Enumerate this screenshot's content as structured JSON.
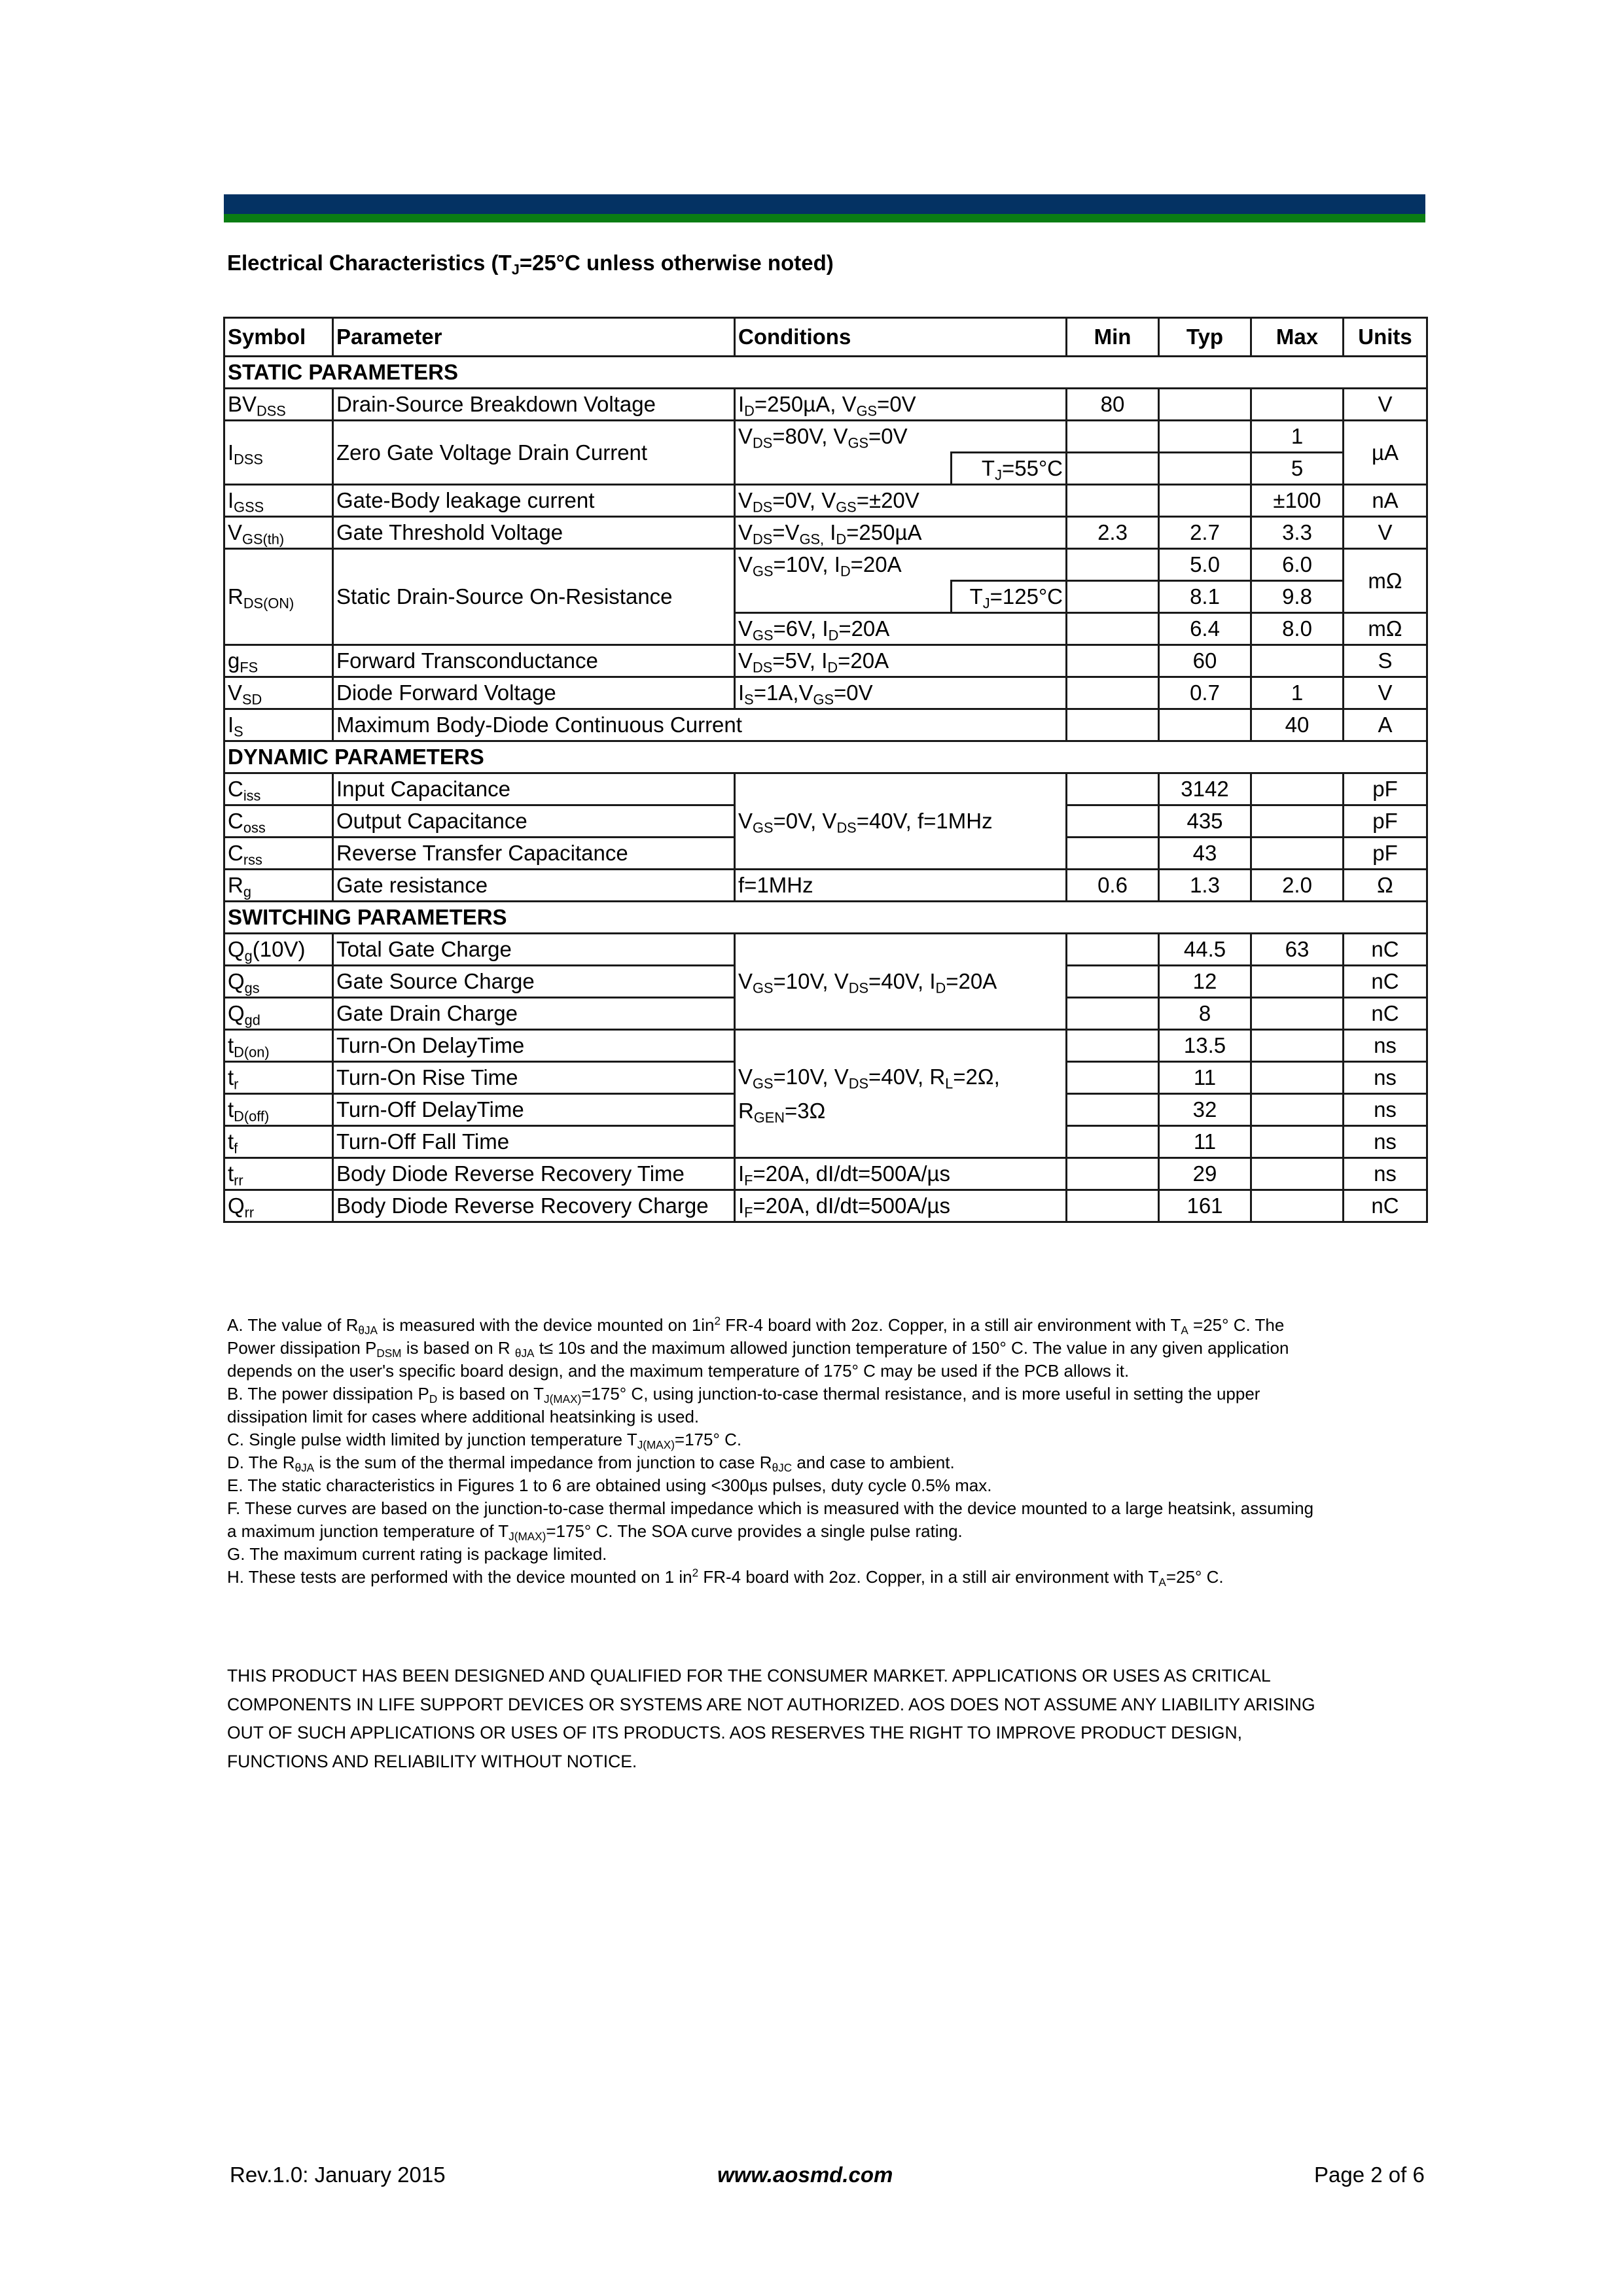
{
  "header_bar_colors": {
    "navy": "#043263",
    "green": "#0a7d13"
  },
  "title": "Electrical Characteristics (T_{J}=25°C unless otherwise noted)",
  "table": {
    "headers": {
      "symbol": "Symbol",
      "parameter": "Parameter",
      "conditions": "Conditions",
      "min": "Min",
      "typ": "Typ",
      "max": "Max",
      "units": "Units"
    },
    "sections": {
      "static": "STATIC PARAMETERS",
      "dynamic": "DYNAMIC PARAMETERS",
      "switching": "SWITCHING PARAMETERS"
    },
    "rows": {
      "bvdss": {
        "symbol": "BV_{DSS}",
        "parameter": "Drain-Source Breakdown Voltage",
        "conditions": "I_{D}=250µA, V_{GS}=0V",
        "min": "80",
        "units": "V"
      },
      "idss": {
        "symbol": "I_{DSS}",
        "parameter": "Zero Gate Voltage Drain Current",
        "conditions": "V_{DS}=80V, V_{GS}=0V",
        "conditions2": "T_{J}=55°C",
        "max": "1",
        "max2": "5",
        "units": "µA"
      },
      "igss": {
        "symbol": "I_{GSS}",
        "parameter": "Gate-Body leakage current",
        "conditions": "V_{DS}=0V, V_{GS}=±20V",
        "max": "±100",
        "units": "nA"
      },
      "vgsth": {
        "symbol": "V_{GS(th)}",
        "parameter": "Gate Threshold Voltage",
        "conditions": "V_{DS}=V_{GS,} I_{D}=250µA",
        "min": "2.3",
        "typ": "2.7",
        "max": "3.3",
        "units": "V"
      },
      "rdson": {
        "symbol": "R_{DS(ON)}",
        "parameter": "Static Drain-Source On-Resistance",
        "conditions": "V_{GS}=10V, I_{D}=20A",
        "typ": "5.0",
        "max": "6.0",
        "units": "mΩ",
        "conditions2": "T_{J}=125°C",
        "typ2": "8.1",
        "max2": "9.8",
        "conditions3": "V_{GS}=6V, I_{D}=20A",
        "typ3": "6.4",
        "max3": "8.0",
        "units3": "mΩ"
      },
      "gfs": {
        "symbol": "g_{FS}",
        "parameter": "Forward Transconductance",
        "conditions": "V_{DS}=5V, I_{D}=20A",
        "typ": "60",
        "units": "S"
      },
      "vsd": {
        "symbol": "V_{SD}",
        "parameter": "Diode Forward Voltage",
        "conditions": "I_{S}=1A,V_{GS}=0V",
        "typ": "0.7",
        "max": "1",
        "units": "V"
      },
      "is": {
        "symbol": "I_{S}",
        "parameter": "Maximum Body-Diode Continuous Current",
        "max": "40",
        "units": "A"
      },
      "ciss": {
        "symbol": "C_{iss}",
        "parameter": "Input Capacitance",
        "typ": "3142",
        "units": "pF"
      },
      "coss": {
        "symbol": "C_{oss}",
        "parameter": "Output Capacitance",
        "typ": "435",
        "units": "pF"
      },
      "crss": {
        "symbol": "C_{rss}",
        "parameter": "Reverse Transfer Capacitance",
        "typ": "43",
        "units": "pF"
      },
      "cap_conditions": "V_{GS}=0V, V_{DS}=40V, f=1MHz",
      "rg": {
        "symbol": "R_{g}",
        "parameter": "Gate resistance",
        "conditions": "f=1MHz",
        "min": "0.6",
        "typ": "1.3",
        "max": "2.0",
        "units": "Ω"
      },
      "qg": {
        "symbol": "Q_{g}(10V)",
        "parameter": "Total Gate Charge",
        "typ": "44.5",
        "max": "63",
        "units": "nC"
      },
      "qgs": {
        "symbol": "Q_{gs}",
        "parameter": "Gate Source Charge",
        "typ": "12",
        "units": "nC"
      },
      "qgd": {
        "symbol": "Q_{gd}",
        "parameter": "Gate Drain Charge",
        "typ": "8",
        "units": "nC"
      },
      "charge_conditions": "V_{GS}=10V, V_{DS}=40V, I_{D}=20A",
      "tdon": {
        "symbol": "t_{D(on)}",
        "parameter": "Turn-On DelayTime",
        "typ": "13.5",
        "units": "ns"
      },
      "tr": {
        "symbol": "t_{r}",
        "parameter": "Turn-On Rise Time",
        "typ": "11",
        "units": "ns"
      },
      "tdoff": {
        "symbol": "t_{D(off)}",
        "parameter": "Turn-Off DelayTime",
        "typ": "32",
        "units": "ns"
      },
      "tf": {
        "symbol": "t_{f}",
        "parameter": "Turn-Off Fall Time",
        "typ": "11",
        "units": "ns"
      },
      "switch_conditions": {
        "line1": "V_{GS}=10V, V_{DS}=40V, R_{L}=2Ω,",
        "line2": "R_{GEN}=3Ω"
      },
      "trr": {
        "symbol": "t_{rr}",
        "parameter": "Body Diode Reverse Recovery Time",
        "conditions": "I_{F}=20A, dI/dt=500A/µs",
        "typ": "29",
        "units": "ns"
      },
      "qrr": {
        "symbol": "Q_{rr}",
        "parameter": "Body Diode Reverse Recovery Charge",
        "conditions": "I_{F}=20A, dI/dt=500A/µs",
        "typ": "161",
        "units": "nC"
      }
    }
  },
  "notes": [
    "A. The value of R_{θJA} is measured with the device mounted on 1in^{2} FR-4 board with 2oz. Copper, in a still air environment with T_{A} =25° C. The",
    "Power dissipation P_{DSM} is based on R _{θJA} t≤ 10s and the maximum allowed junction temperature of 150° C. The value in any given application",
    "depends on the user's specific board design, and the maximum temperature of 175° C may be used if the PCB allows it.",
    "B. The power dissipation P_{D} is based on T_{J(MAX)}=175° C, using junction-to-case thermal resistance, and is more useful in setting the upper",
    "dissipation limit for cases where additional heatsinking is used.",
    "C. Single pulse width limited by junction temperature T_{J(MAX)}=175° C.",
    "D. The R_{θJA} is the sum of the thermal impedance from junction to case R_{θJC} and case to ambient.",
    "E. The static characteristics in Figures 1 to 6 are obtained using <300µs pulses, duty cycle 0.5% max.",
    "F. These curves are based on the junction-to-case thermal impedance which is measured with the device mounted to a large heatsink, assuming",
    "a maximum junction temperature of T_{J(MAX)}=175° C. The SOA curve provides a single pulse rating.",
    "G. The maximum current rating is package limited.",
    "H. These tests are performed with the device mounted on 1 in^{2} FR-4 board with 2oz. Copper, in a still air environment with T_{A}=25° C."
  ],
  "disclaimer": [
    "THIS PRODUCT HAS BEEN DESIGNED AND QUALIFIED FOR THE CONSUMER MARKET. APPLICATIONS OR USES AS CRITICAL",
    "COMPONENTS IN LIFE SUPPORT DEVICES OR SYSTEMS ARE NOT AUTHORIZED. AOS DOES NOT ASSUME ANY LIABILITY ARISING",
    "OUT OF SUCH APPLICATIONS OR USES OF ITS PRODUCTS.  AOS RESERVES THE RIGHT TO IMPROVE PRODUCT DESIGN,",
    "FUNCTIONS AND RELIABILITY WITHOUT NOTICE."
  ],
  "footer": {
    "revision": "Rev.1.0: January 2015",
    "url": "www.aosmd.com",
    "page": "Page 2 of 6"
  }
}
